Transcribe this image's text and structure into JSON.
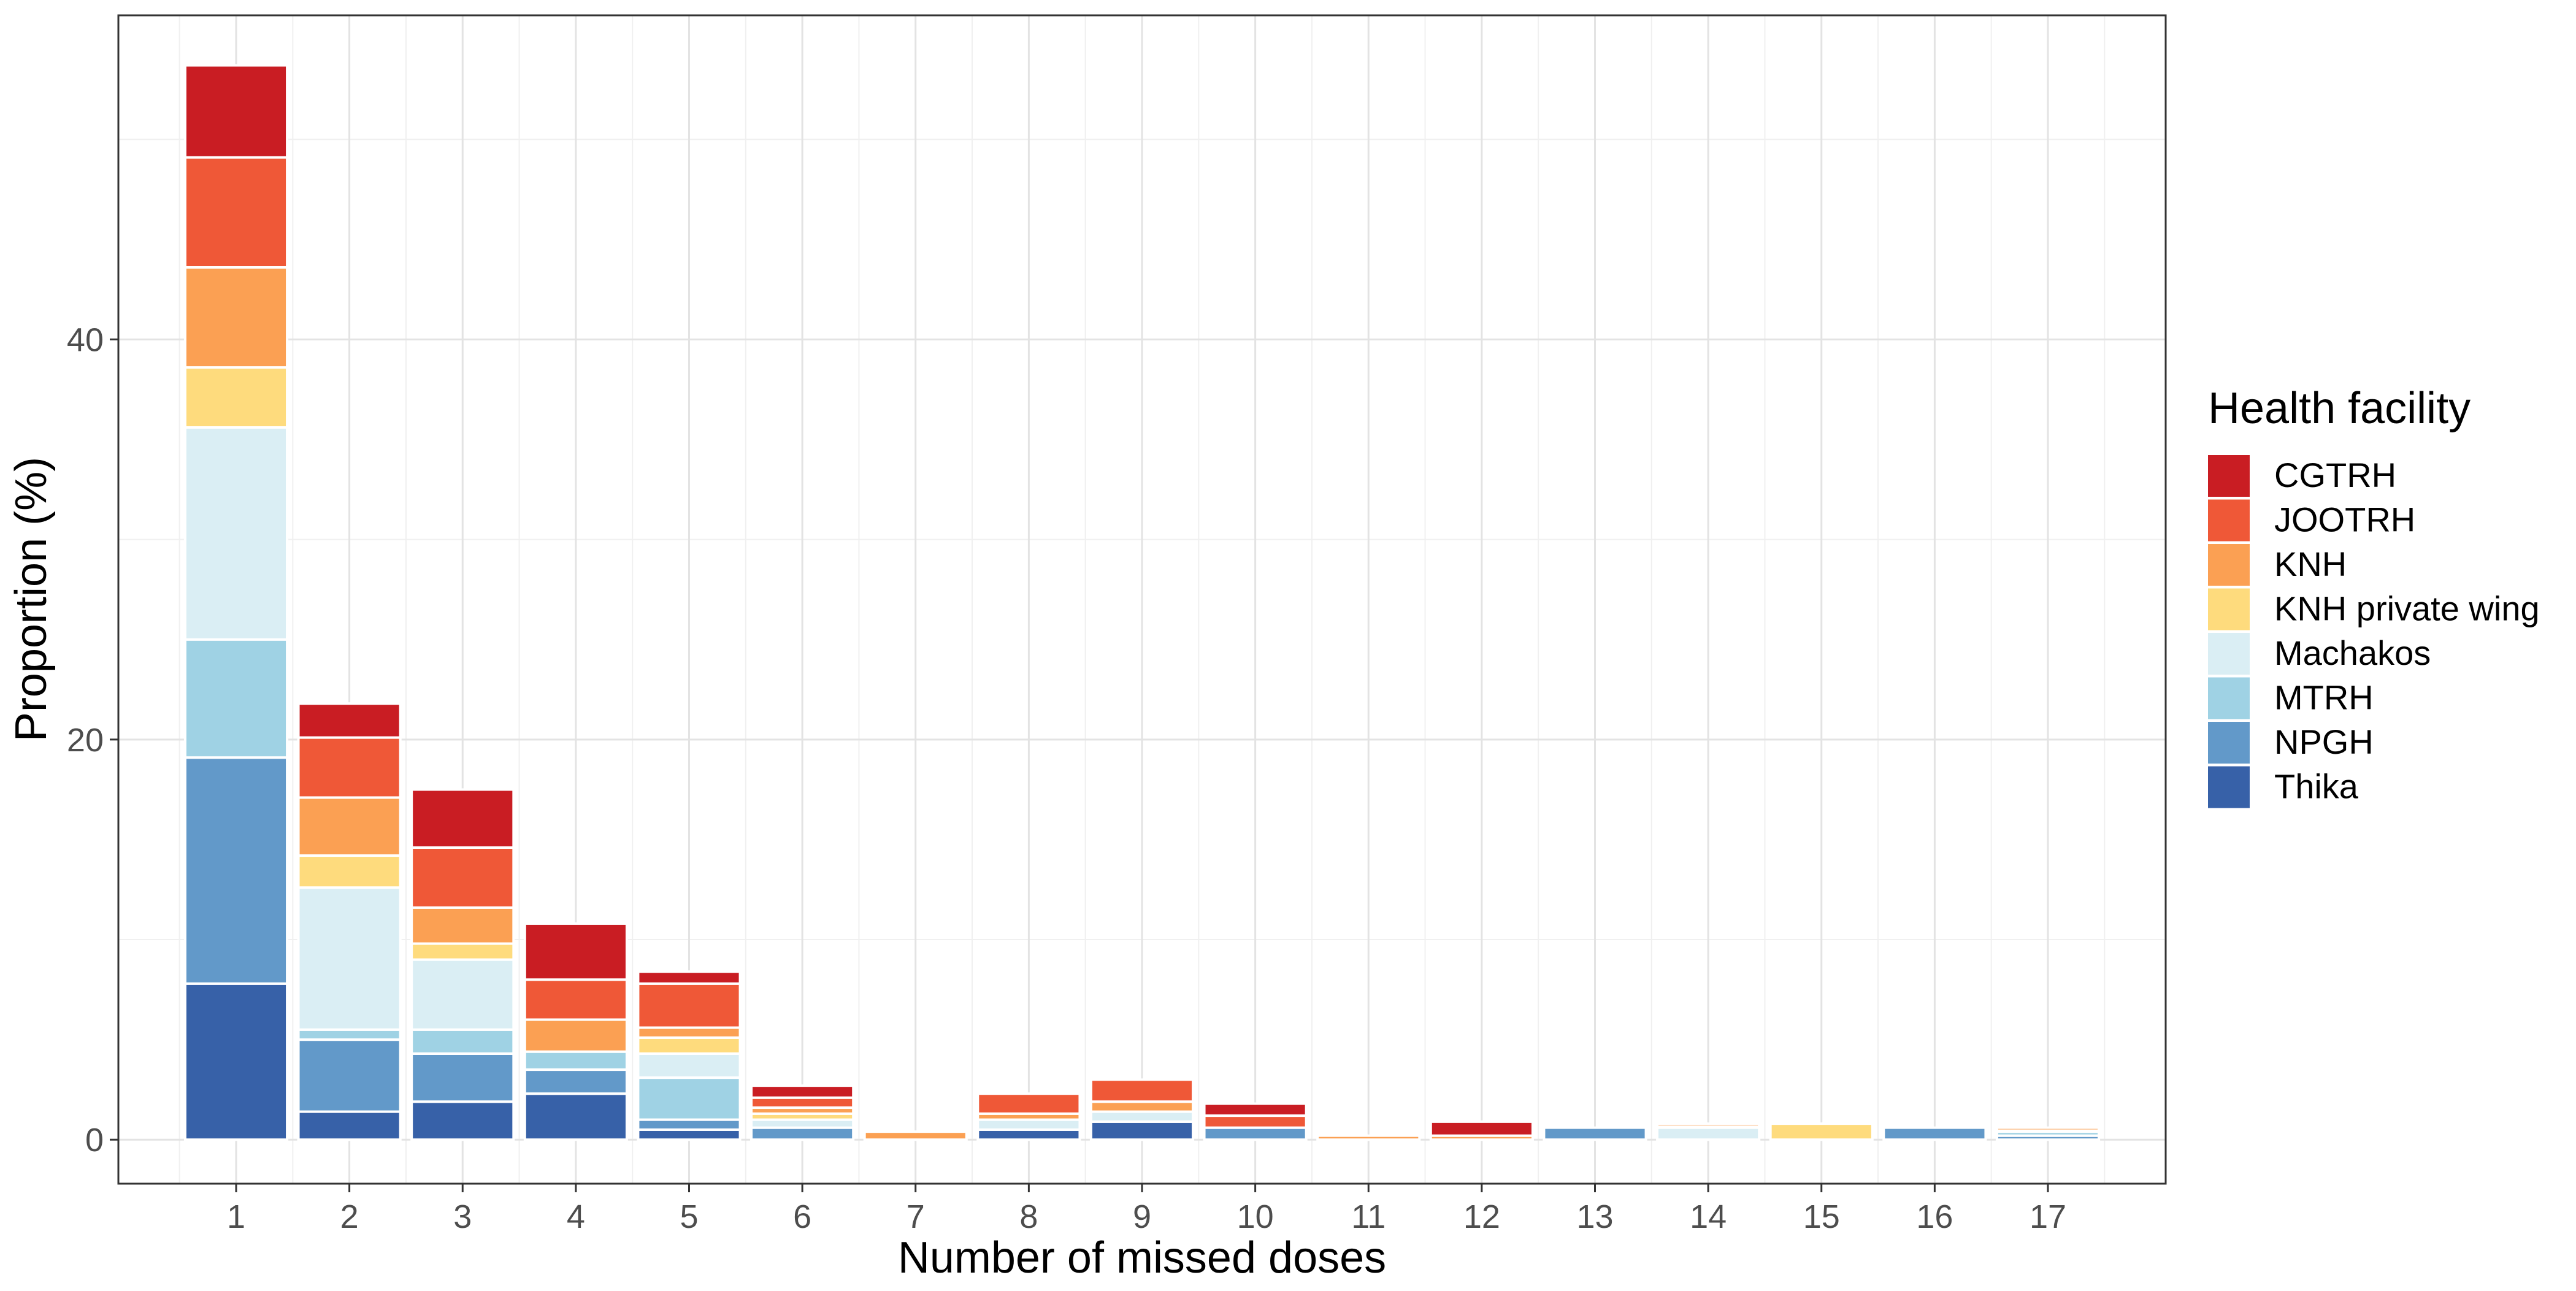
{
  "chart_data": {
    "type": "bar",
    "stacked": true,
    "title": "",
    "xlabel": "Number of missed doses",
    "ylabel": "Proportion (%)",
    "ylim": [
      -2.2,
      56.2
    ],
    "yticks": [
      0,
      20,
      40
    ],
    "grid": true,
    "legend_position": "right",
    "legend_title": "Health facility",
    "categories": [
      "1",
      "2",
      "3",
      "4",
      "5",
      "6",
      "7",
      "8",
      "9",
      "10",
      "11",
      "12",
      "13",
      "14",
      "15",
      "16",
      "17"
    ],
    "series": [
      {
        "name": "Thika",
        "color": "#3761A8",
        "values": [
          7.8,
          1.4,
          1.9,
          2.3,
          0.5,
          0,
          0,
          0.5,
          0.9,
          0,
          0,
          0,
          0,
          0,
          0,
          0,
          0
        ]
      },
      {
        "name": "NPGH",
        "color": "#6299C9",
        "values": [
          11.3,
          3.6,
          2.4,
          1.2,
          0.5,
          0.6,
          0,
          0,
          0,
          0.6,
          0,
          0,
          0.6,
          0,
          0,
          0.6,
          0.2
        ]
      },
      {
        "name": "MTRH",
        "color": "#9FD2E4",
        "values": [
          5.9,
          0.5,
          1.2,
          0.9,
          2.1,
          0,
          0,
          0,
          0,
          0,
          0,
          0,
          0,
          0,
          0,
          0,
          0.2
        ]
      },
      {
        "name": "Machakos",
        "color": "#DAEEF4",
        "values": [
          10.6,
          7.1,
          3.5,
          0,
          1.2,
          0.4,
          0,
          0.5,
          0.5,
          0,
          0,
          0,
          0,
          0.6,
          0,
          0,
          0
        ]
      },
      {
        "name": "KNH private wing",
        "color": "#FEDB7D",
        "values": [
          3.0,
          1.6,
          0.8,
          0,
          0.8,
          0.3,
          0,
          0,
          0,
          0,
          0,
          0,
          0,
          0.05,
          0.8,
          0,
          0.05
        ]
      },
      {
        "name": "KNH",
        "color": "#FBA053",
        "values": [
          5.0,
          2.9,
          1.8,
          1.6,
          0.5,
          0.3,
          0.4,
          0.3,
          0.5,
          0,
          0.2,
          0.2,
          0,
          0.15,
          0,
          0,
          0.15
        ]
      },
      {
        "name": "JOOTRH",
        "color": "#EF5837",
        "values": [
          5.5,
          3.0,
          3.0,
          2.0,
          2.2,
          0.5,
          0,
          1.0,
          1.1,
          0.6,
          0,
          0,
          0,
          0,
          0,
          0,
          0
        ]
      },
      {
        "name": "CGTRH",
        "color": "#C91D23",
        "values": [
          4.6,
          1.7,
          2.9,
          2.8,
          0.6,
          0.6,
          0,
          0,
          0,
          0.6,
          0,
          0.7,
          0,
          0,
          0,
          0,
          0
        ]
      }
    ]
  }
}
